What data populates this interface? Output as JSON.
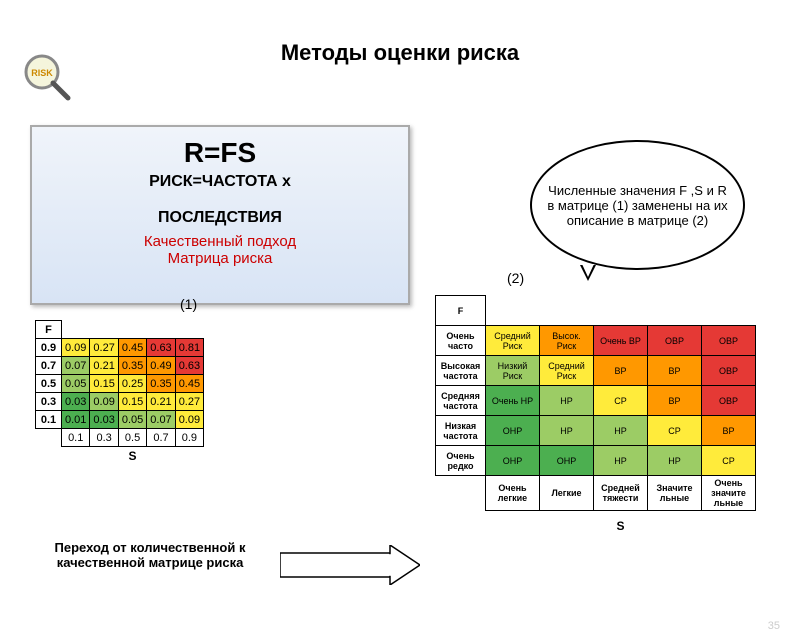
{
  "icon_label": "RISK",
  "title": "Методы оценки риска",
  "formula": {
    "eq": "R=FS",
    "l2": "РИСК=ЧАСТОТА x",
    "l3": "ПОСЛЕДСТВИЯ",
    "l4": "Качественный подход",
    "l5": "Матрица риска"
  },
  "label1": "(1)",
  "label2": "(2)",
  "colors": {
    "green": "#4caf50",
    "lightgreen": "#9ccc65",
    "yellow": "#ffeb3b",
    "orange": "#ff9800",
    "red": "#e53935"
  },
  "matrix1": {
    "f_header": "F",
    "s_header": "S",
    "f_values": [
      "0.9",
      "0.7",
      "0.5",
      "0.3",
      "0.1"
    ],
    "s_values": [
      "0.1",
      "0.3",
      "0.5",
      "0.7",
      "0.9"
    ],
    "cells": [
      [
        {
          "v": "0.09",
          "c": "yellow"
        },
        {
          "v": "0.27",
          "c": "yellow"
        },
        {
          "v": "0.45",
          "c": "orange"
        },
        {
          "v": "0.63",
          "c": "red"
        },
        {
          "v": "0.81",
          "c": "red"
        }
      ],
      [
        {
          "v": "0.07",
          "c": "lightgreen"
        },
        {
          "v": "0.21",
          "c": "yellow"
        },
        {
          "v": "0.35",
          "c": "orange"
        },
        {
          "v": "0.49",
          "c": "orange"
        },
        {
          "v": "0.63",
          "c": "red"
        }
      ],
      [
        {
          "v": "0.05",
          "c": "lightgreen"
        },
        {
          "v": "0.15",
          "c": "yellow"
        },
        {
          "v": "0.25",
          "c": "yellow"
        },
        {
          "v": "0.35",
          "c": "orange"
        },
        {
          "v": "0.45",
          "c": "orange"
        }
      ],
      [
        {
          "v": "0.03",
          "c": "green"
        },
        {
          "v": "0.09",
          "c": "lightgreen"
        },
        {
          "v": "0.15",
          "c": "yellow"
        },
        {
          "v": "0.21",
          "c": "yellow"
        },
        {
          "v": "0.27",
          "c": "yellow"
        }
      ],
      [
        {
          "v": "0.01",
          "c": "green"
        },
        {
          "v": "0.03",
          "c": "green"
        },
        {
          "v": "0.05",
          "c": "lightgreen"
        },
        {
          "v": "0.07",
          "c": "lightgreen"
        },
        {
          "v": "0.09",
          "c": "yellow"
        }
      ]
    ]
  },
  "matrix2": {
    "f_header": "F",
    "s_header": "S",
    "row_labels": [
      "Очень часто",
      "Высокая частота",
      "Средняя частота",
      "Низкая частота",
      "Очень редко"
    ],
    "col_labels": [
      "Очень легкие",
      "Легкие",
      "Средней тяжести",
      "Значите льные",
      "Очень значите льные"
    ],
    "cells": [
      [
        {
          "v": "Средний Риск",
          "c": "yellow"
        },
        {
          "v": "Высок. Риск",
          "c": "orange"
        },
        {
          "v": "Очень ВР",
          "c": "red"
        },
        {
          "v": "ОВР",
          "c": "red"
        },
        {
          "v": "ОВР",
          "c": "red"
        }
      ],
      [
        {
          "v": "Низкий Риск",
          "c": "lightgreen"
        },
        {
          "v": "Средний Риск",
          "c": "yellow"
        },
        {
          "v": "ВР",
          "c": "orange"
        },
        {
          "v": "ВР",
          "c": "orange"
        },
        {
          "v": "ОВР",
          "c": "red"
        }
      ],
      [
        {
          "v": "Очень НР",
          "c": "green"
        },
        {
          "v": "НР",
          "c": "lightgreen"
        },
        {
          "v": "СР",
          "c": "yellow"
        },
        {
          "v": "ВР",
          "c": "orange"
        },
        {
          "v": "ОВР",
          "c": "red"
        }
      ],
      [
        {
          "v": "ОНР",
          "c": "green"
        },
        {
          "v": "НР",
          "c": "lightgreen"
        },
        {
          "v": "НР",
          "c": "lightgreen"
        },
        {
          "v": "СР",
          "c": "yellow"
        },
        {
          "v": "ВР",
          "c": "orange"
        }
      ],
      [
        {
          "v": "ОНР",
          "c": "green"
        },
        {
          "v": "ОНР",
          "c": "green"
        },
        {
          "v": "НР",
          "c": "lightgreen"
        },
        {
          "v": "НР",
          "c": "lightgreen"
        },
        {
          "v": "СР",
          "c": "yellow"
        }
      ]
    ]
  },
  "caption1": "Переход от количественной к качественной матрице риска",
  "bubble": "Численные значения F ,S и R в матрице (1) заменены на их описание в матрице (2)",
  "pagenum": "35"
}
